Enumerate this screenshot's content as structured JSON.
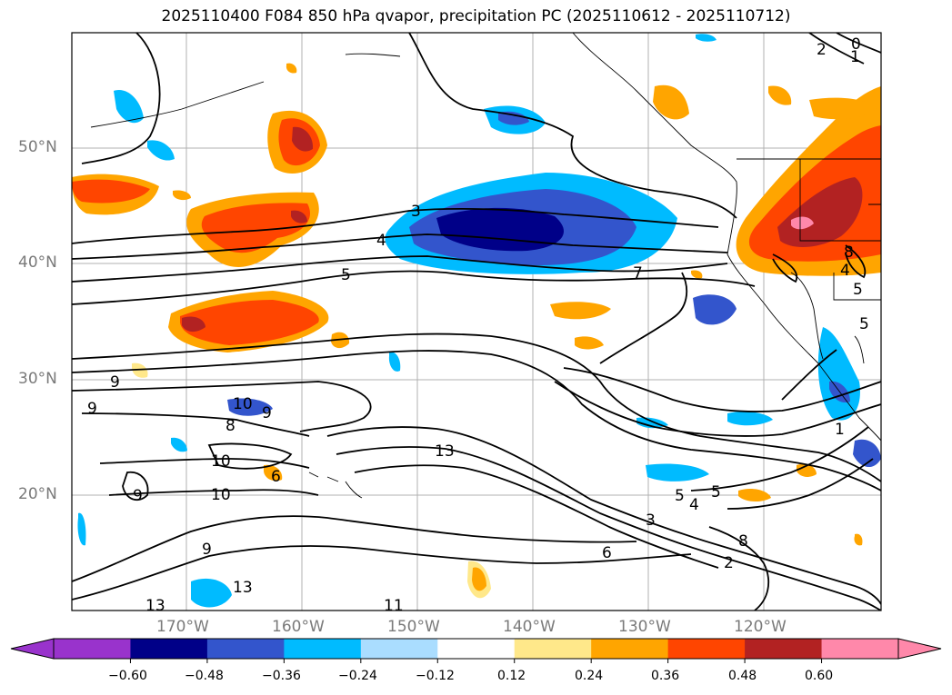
{
  "title": "2025110400 F084 850 hPa qvapor, precipitation PC (2025110612 - 2025110712)",
  "lat_labels": [
    "50°N",
    "40°N",
    "30°N",
    "20°N"
  ],
  "lon_labels": [
    "170°W",
    "160°W",
    "150°W",
    "140°W",
    "130°W",
    "120°W"
  ],
  "contour_labels": [
    "2",
    "0",
    "1",
    "3",
    "4",
    "5",
    "7",
    "8",
    "4",
    "5",
    "5",
    "9",
    "9",
    "10",
    "8",
    "9",
    "10",
    "9",
    "10",
    "9",
    "6",
    "13",
    "13",
    "13",
    "11",
    "6",
    "3",
    "5",
    "4",
    "5",
    "8",
    "2",
    "1"
  ],
  "colorbar": {
    "tick_labels": [
      "−0.60",
      "−0.48",
      "−0.36",
      "−0.24",
      "−0.12",
      "0.12",
      "0.24",
      "0.36",
      "0.48",
      "0.60"
    ],
    "colors": [
      "#9933cc",
      "#000088",
      "#3355cc",
      "#00bbff",
      "#aaddff",
      "#ffffff",
      "#ffe88a",
      "#ffa500",
      "#ff4500",
      "#b22222",
      "#ff88aa"
    ]
  },
  "colors": {
    "land": "#ffffff",
    "ocean": "#ffffff",
    "grid": "#b0b0b0",
    "contour": "#000000"
  }
}
